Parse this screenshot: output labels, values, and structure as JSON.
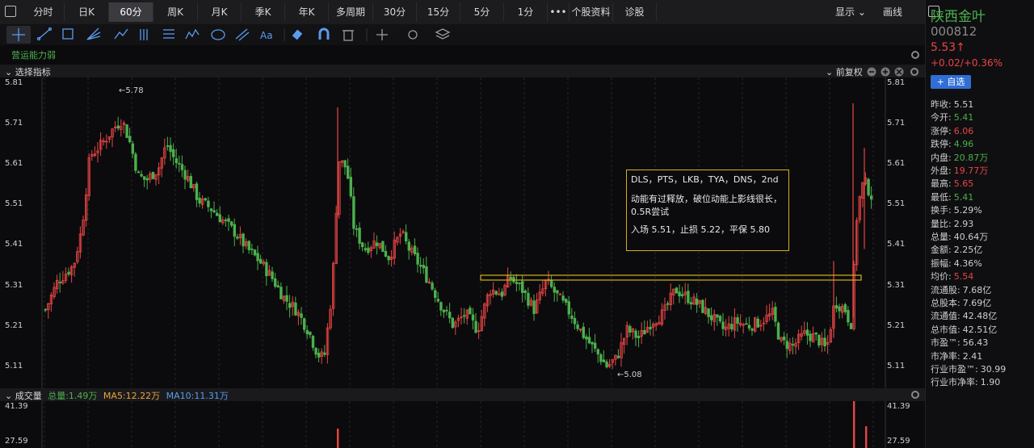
{
  "tabs": [
    {
      "label": "分时",
      "active": false
    },
    {
      "label": "日K",
      "active": false
    },
    {
      "label": "60分",
      "active": true
    },
    {
      "label": "周K",
      "active": false
    },
    {
      "label": "月K",
      "active": false
    },
    {
      "label": "季K",
      "active": false
    },
    {
      "label": "年K",
      "active": false
    },
    {
      "label": "多周期",
      "active": false
    },
    {
      "label": "30分",
      "active": false
    },
    {
      "label": "15分",
      "active": false
    },
    {
      "label": "5分",
      "active": false
    },
    {
      "label": "1分",
      "active": false
    },
    {
      "label": "•••",
      "active": false
    },
    {
      "label": "个股资料",
      "active": false
    },
    {
      "label": "诊股",
      "active": false
    }
  ],
  "topright": {
    "display": "显示",
    "draw": "画线"
  },
  "indicator_title": "营运能力弱",
  "chart_header": {
    "select": "选择指标",
    "adjust": "前复权"
  },
  "sidebar": {
    "name": "陕西金叶",
    "code": "000812",
    "price": "5.53↑",
    "change": "+0.02/+0.36%",
    "watch_btn": "+ 自选",
    "rows": [
      {
        "label": "昨收:",
        "value": "5.51",
        "color": "white"
      },
      {
        "label": "今开:",
        "value": "5.41",
        "color": "green"
      },
      {
        "label": "涨停:",
        "value": "6.06",
        "color": "red"
      },
      {
        "label": "跌停:",
        "value": "4.96",
        "color": "green"
      },
      {
        "label": "内盘:",
        "value": "20.87万",
        "color": "green"
      },
      {
        "label": "外盘:",
        "value": "19.77万",
        "color": "red"
      },
      {
        "label": "最高:",
        "value": "5.65",
        "color": "red"
      },
      {
        "label": "最低:",
        "value": "5.41",
        "color": "green"
      },
      {
        "label": "换手:",
        "value": "5.29%",
        "color": "white"
      },
      {
        "label": "量比:",
        "value": "2.93",
        "color": "white"
      },
      {
        "label": "总量:",
        "value": "40.64万",
        "color": "white"
      },
      {
        "label": "金额:",
        "value": "2.25亿",
        "color": "white"
      },
      {
        "label": "振幅:",
        "value": "4.36%",
        "color": "white"
      },
      {
        "label": "均价:",
        "value": "5.54",
        "color": "red"
      },
      {
        "label": "流通股:",
        "value": "7.68亿",
        "color": "white"
      },
      {
        "label": "总股本:",
        "value": "7.69亿",
        "color": "white"
      },
      {
        "label": "流通值:",
        "value": "42.48亿",
        "color": "white"
      },
      {
        "label": "总市值:",
        "value": "42.51亿",
        "color": "white"
      },
      {
        "label": "市盈™:",
        "value": "56.43",
        "color": "white"
      },
      {
        "label": "市净率:",
        "value": "2.41",
        "color": "white"
      },
      {
        "label": "行业市盈™:",
        "value": "30.99",
        "color": "white"
      },
      {
        "label": "行业市净率:",
        "value": "1.90",
        "color": "white"
      }
    ]
  },
  "note": {
    "line1": "DLS，PTS，LKB，TYA，DNS，2nd",
    "line2": "动能有过释放，破位动能上影线很长，0.5R尝试",
    "line3": "入场 5.51，止损 5.22，平保 5.80"
  },
  "price_axis": [
    "5.81",
    "5.71",
    "5.61",
    "5.51",
    "5.41",
    "5.31",
    "5.21",
    "5.11"
  ],
  "annotations": {
    "high": "←5.78",
    "low": "←5.08"
  },
  "volume": {
    "title": "成交量",
    "total": "总量:1.49万",
    "ma5": "MA5:12.22万",
    "ma10": "MA10:11.31万",
    "axis": [
      "41.39",
      "27.59"
    ]
  },
  "colors": {
    "up": "#e84545",
    "down": "#4cb04c",
    "zone": "#d4b21a",
    "accent": "#2f6fd6"
  }
}
